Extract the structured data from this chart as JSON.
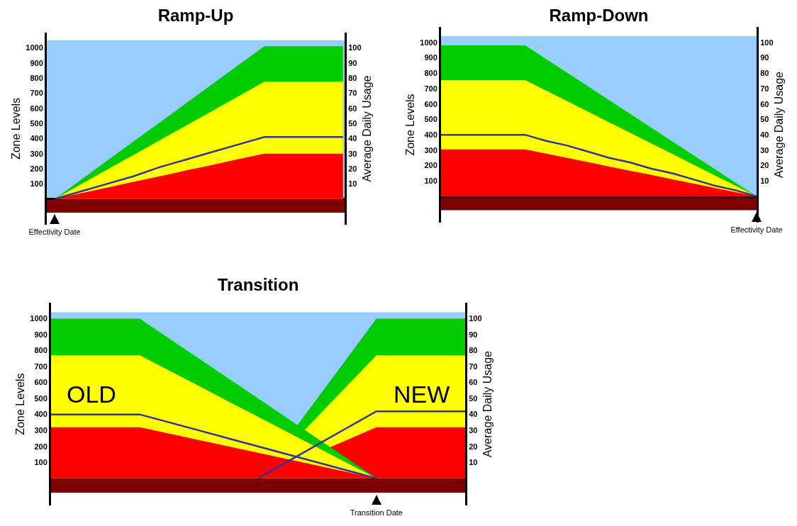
{
  "chart_data": [
    {
      "type": "area",
      "title": "Ramp-Up",
      "ylabel": "Zone Levels",
      "y2label": "Average Daily Usage",
      "ylim": [
        -170,
        1100
      ],
      "yticks": [
        100,
        200,
        300,
        400,
        500,
        600,
        700,
        800,
        900,
        1000
      ],
      "y2lim": [
        -17,
        110
      ],
      "y2ticks": [
        10,
        20,
        30,
        40,
        50,
        60,
        70,
        80,
        90,
        100
      ],
      "categories": [
        "Effectivity Date",
        null,
        null,
        null,
        null,
        null,
        null,
        null,
        null,
        null,
        null,
        null
      ],
      "bands": [
        {
          "axis": "y",
          "from": 0,
          "to": 1050,
          "color": "#99ccff"
        },
        {
          "axis": "y",
          "from": -90,
          "to": 0,
          "color": "#7f0000"
        }
      ],
      "series": [
        {
          "values": [
            0,
            126,
            253,
            379,
            505,
            631,
            758,
            884,
            1010,
            1010,
            1010,
            1010
          ],
          "color": "#00cc00"
        },
        {
          "values": [
            0,
            97,
            194,
            291,
            388,
            484,
            581,
            678,
            775,
            775,
            775,
            775
          ],
          "color": "#ffff00"
        },
        {
          "values": [
            0,
            38,
            75,
            113,
            150,
            188,
            225,
            263,
            300,
            300,
            300,
            300
          ],
          "color": "#ff0000"
        },
        {
          "type": "line",
          "axis": "y2",
          "values": [
            0,
            5,
            10,
            15,
            21,
            26,
            31,
            36,
            41,
            41,
            41,
            41
          ],
          "color": "#333399"
        }
      ]
    },
    {
      "type": "area",
      "title": "Ramp-Down",
      "ylabel": "Zone Levels",
      "y2label": "Average Daily Usage",
      "ylim": [
        -170,
        1100
      ],
      "yticks": [
        100,
        200,
        300,
        400,
        500,
        600,
        700,
        800,
        900,
        1000
      ],
      "y2lim": [
        -17,
        110
      ],
      "y2ticks": [
        10,
        20,
        30,
        40,
        50,
        60,
        70,
        80,
        90,
        100
      ],
      "categories": [
        null,
        null,
        null,
        null,
        null,
        null,
        null,
        null,
        null,
        null,
        null,
        null,
        null,
        null,
        null,
        "Effectivity Date"
      ],
      "bands": [
        {
          "axis": "y",
          "from": 0,
          "to": 1040,
          "color": "#99ccff"
        },
        {
          "axis": "y",
          "from": -90,
          "to": 0,
          "color": "#7f0000"
        }
      ],
      "series": [
        {
          "values": [
            980,
            980,
            980,
            980,
            980,
            891,
            802,
            713,
            624,
            535,
            445,
            356,
            267,
            178,
            89,
            0
          ],
          "color": "#00cc00"
        },
        {
          "values": [
            755,
            755,
            755,
            755,
            755,
            686,
            618,
            549,
            480,
            412,
            343,
            275,
            206,
            137,
            69,
            0
          ],
          "color": "#ffff00"
        },
        {
          "values": [
            305,
            305,
            305,
            305,
            305,
            277,
            250,
            222,
            194,
            166,
            139,
            111,
            83,
            55,
            28,
            0
          ],
          "color": "#ff0000"
        },
        {
          "type": "line",
          "axis": "y2",
          "values": [
            40,
            40,
            40,
            40,
            40,
            36,
            33,
            29,
            25,
            22,
            18,
            15,
            11,
            7,
            4,
            0
          ],
          "color": "#333399"
        }
      ]
    },
    {
      "type": "area",
      "title": "Transition",
      "ylabel": "Zone Levels",
      "y2label": "Average Daily Usage",
      "ylim": [
        -170,
        1100
      ],
      "yticks": [
        100,
        200,
        300,
        400,
        500,
        600,
        700,
        800,
        900,
        1000
      ],
      "y2lim": [
        -17,
        110
      ],
      "y2ticks": [
        10,
        20,
        30,
        40,
        50,
        60,
        70,
        80,
        90,
        100
      ],
      "categories": [
        null,
        null,
        null,
        null,
        null,
        null,
        null,
        null,
        null,
        null,
        null,
        "Transition Date",
        null,
        null,
        null
      ],
      "annotations": [
        "OLD",
        "NEW"
      ],
      "bands": [
        {
          "axis": "y",
          "from": 0,
          "to": 1040,
          "color": "#99ccff"
        },
        {
          "axis": "y",
          "from": -90,
          "to": 0,
          "color": "#7f0000"
        }
      ],
      "series": [
        {
          "values": [
            null,
            null,
            null,
            null,
            null,
            null,
            null,
            0,
            null,
            500,
            750,
            1000,
            1000,
            1000,
            1000
          ],
          "color": "#00cc00"
        },
        {
          "values": [
            null,
            null,
            null,
            null,
            null,
            null,
            null,
            0,
            null,
            385,
            578,
            770,
            770,
            770,
            770
          ],
          "color": "#ffff00"
        },
        {
          "values": [
            null,
            null,
            null,
            null,
            null,
            null,
            null,
            0,
            null,
            null,
            240,
            320,
            320,
            320,
            320
          ],
          "color": "#ff0000"
        },
        {
          "type": "line",
          "axis": "y2",
          "values": [
            null,
            null,
            null,
            null,
            null,
            null,
            null,
            0,
            10.5,
            21,
            31.5,
            42,
            42,
            42,
            42
          ],
          "color": "#333399"
        },
        {
          "values": [
            1000,
            1000,
            1000,
            1000,
            875,
            750,
            625,
            500,
            375,
            250,
            125,
            0,
            null,
            null,
            null
          ],
          "color": "#00cc00"
        },
        {
          "values": [
            770,
            770,
            770,
            770,
            674,
            578,
            481,
            385,
            289,
            193,
            96,
            0,
            null,
            null,
            null
          ],
          "color": "#ffff00"
        },
        {
          "values": [
            320,
            320,
            320,
            320,
            280,
            240,
            200,
            160,
            120,
            80,
            40,
            0,
            null,
            null,
            null
          ],
          "color": "#ff0000"
        },
        {
          "type": "line",
          "axis": "y2",
          "values": [
            40,
            40,
            40,
            40,
            35,
            30,
            25,
            20,
            15,
            10,
            5,
            0,
            null,
            null,
            null
          ],
          "color": "#333399"
        }
      ]
    }
  ]
}
